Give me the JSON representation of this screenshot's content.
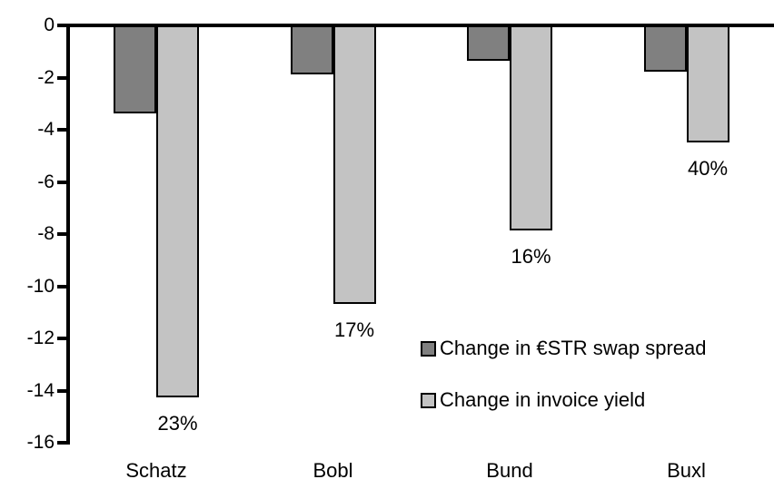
{
  "chart_data": {
    "type": "bar",
    "title": "",
    "xlabel": "",
    "ylabel": "",
    "categories": [
      "Schatz",
      "Bobl",
      "Bund",
      "Buxl"
    ],
    "series": [
      {
        "name": "Change in €STR swap spread",
        "color": "#808080",
        "values": [
          -3.3,
          -1.8,
          -1.3,
          -1.7
        ]
      },
      {
        "name": "Change in invoice yield",
        "color": "#c3c3c3",
        "values": [
          -14.2,
          -10.6,
          -7.8,
          -4.4
        ]
      }
    ],
    "bar_labels_series_index": 1,
    "bar_labels": [
      "23%",
      "17%",
      "16%",
      "40%"
    ],
    "yticks": [
      0,
      -2,
      -4,
      -6,
      -8,
      -10,
      -12,
      -14,
      -16
    ],
    "ylim": [
      -16,
      0
    ],
    "grid": false,
    "legend_position": "inside-right",
    "colors": {
      "axis": "#000000",
      "bar_border": "#000000",
      "text": "#000000",
      "background": "#ffffff"
    }
  }
}
